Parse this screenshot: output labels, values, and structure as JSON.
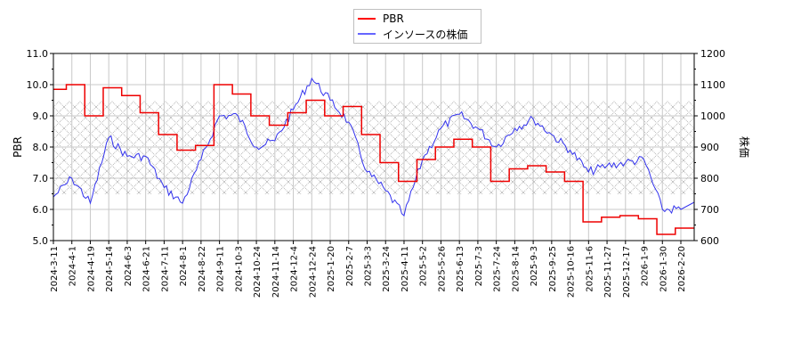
{
  "legend": {
    "items": [
      {
        "label": "PBR",
        "color": "#ff0000"
      },
      {
        "label": "インソースの株価",
        "color": "#0000ff"
      }
    ]
  },
  "axes": {
    "left_label": "PBR",
    "right_label": "株価",
    "left_ticks": [
      "5.0",
      "6.0",
      "7.0",
      "8.0",
      "9.0",
      "10.0",
      "11.0"
    ],
    "right_ticks": [
      "600",
      "700",
      "800",
      "900",
      "1000",
      "1100",
      "1200"
    ]
  },
  "chart_data": {
    "type": "line",
    "title": "",
    "xlabel": "",
    "ylabel": "PBR",
    "ylabel_right": "株価",
    "ylim": [
      5.0,
      11.0
    ],
    "ylim_right": [
      600,
      1200
    ],
    "grid": true,
    "legend_position": "top-center",
    "shaded_band": {
      "axis": "left",
      "from": 6.5,
      "to": 9.5,
      "pattern": "crosshatch"
    },
    "categories": [
      "2024-3-11",
      "2024-4-1",
      "2024-4-19",
      "2024-5-14",
      "2024-6-3",
      "2024-6-21",
      "2024-7-11",
      "2024-8-1",
      "2024-8-22",
      "2024-9-11",
      "2024-10-3",
      "2024-10-24",
      "2024-11-14",
      "2024-12-4",
      "2024-12-24",
      "2025-1-20",
      "2025-2-7",
      "2025-3-3",
      "2025-3-24",
      "2025-4-11",
      "2025-5-2",
      "2025-5-26",
      "2025-6-13",
      "2025-7-3",
      "2025-7-24",
      "2025-8-14",
      "2025-9-3",
      "2025-9-25",
      "2025-10-16",
      "2025-11-6",
      "2025-11-27",
      "2025-12-17",
      "2026-1-9",
      "2026-1-30",
      "2026-2-20"
    ],
    "series": [
      {
        "name": "PBR",
        "axis": "left",
        "color": "#ff0000",
        "values": [
          9.85,
          10.0,
          9.0,
          9.9,
          9.65,
          9.1,
          8.4,
          7.9,
          8.05,
          10.0,
          9.7,
          9.0,
          8.7,
          9.1,
          9.5,
          9.0,
          9.3,
          8.4,
          7.5,
          6.9,
          7.6,
          8.0,
          8.25,
          8.0,
          6.9,
          7.3,
          7.4,
          7.2,
          6.9,
          5.6,
          5.75,
          5.8,
          5.7,
          5.2,
          5.4
        ]
      },
      {
        "name": "インソースの株価",
        "axis": "right",
        "color": "#0000ff",
        "values": [
          740,
          800,
          720,
          930,
          870,
          870,
          770,
          720,
          860,
          1000,
          1000,
          900,
          920,
          1020,
          1120,
          1050,
          980,
          820,
          760,
          680,
          860,
          960,
          1005,
          960,
          900,
          960,
          990,
          940,
          890,
          820,
          840,
          850,
          860,
          700,
          700
        ]
      }
    ]
  }
}
